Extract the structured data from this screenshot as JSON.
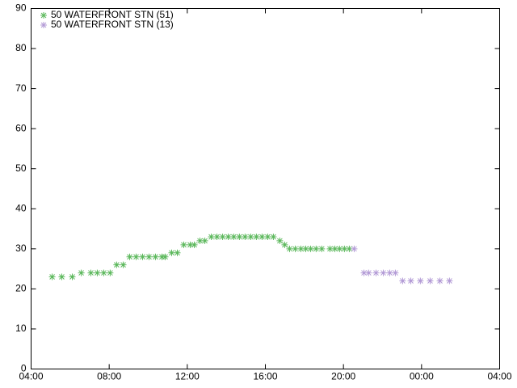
{
  "chart_data": {
    "type": "scatter",
    "series": [
      {
        "name": "50 WATERFRONT STN (51)",
        "color": "#5cb85c",
        "x": [
          5.08,
          5.57,
          6.11,
          6.57,
          7.06,
          7.39,
          7.72,
          8.05,
          8.38,
          8.72,
          9.05,
          9.38,
          9.71,
          10.04,
          10.37,
          10.7,
          10.87,
          11.2,
          11.49,
          11.82,
          12.15,
          12.36,
          12.65,
          12.9,
          13.23,
          13.52,
          13.81,
          14.1,
          14.38,
          14.67,
          14.96,
          15.25,
          15.54,
          15.83,
          16.12,
          16.41,
          16.74,
          16.99,
          17.24,
          17.53,
          17.82,
          18.07,
          18.32,
          18.6,
          18.89,
          19.31,
          19.56,
          19.8,
          20.05,
          20.3
        ],
        "values": [
          23,
          23,
          23,
          24,
          24,
          24,
          24,
          24,
          26,
          26,
          28,
          28,
          28,
          28,
          28,
          28,
          28,
          29,
          29,
          31,
          31,
          31,
          32,
          32,
          33,
          33,
          33,
          33,
          33,
          33,
          33,
          33,
          33,
          33,
          33,
          33,
          32,
          31,
          30,
          30,
          30,
          30,
          30,
          30,
          30,
          30,
          30,
          30,
          30,
          30
        ]
      },
      {
        "name": "50 WATERFRONT STN (13)",
        "color": "#b39bd6",
        "x": [
          20.55,
          21.05,
          21.29,
          21.67,
          22.04,
          22.37,
          22.66,
          23.03,
          23.45,
          23.94,
          24.44,
          24.94,
          25.43
        ],
        "values": [
          30,
          24,
          24,
          24,
          24,
          24,
          24,
          22,
          22,
          22,
          22,
          22,
          22
        ]
      }
    ],
    "xlim": [
      4,
      28
    ],
    "xticks": [
      {
        "value": 4,
        "label": "04:00"
      },
      {
        "value": 8,
        "label": "08:00"
      },
      {
        "value": 12,
        "label": "12:00"
      },
      {
        "value": 16,
        "label": "16:00"
      },
      {
        "value": 20,
        "label": "20:00"
      },
      {
        "value": 24,
        "label": "00:00"
      },
      {
        "value": 28,
        "label": "04:00"
      }
    ],
    "ylim": [
      0,
      90
    ],
    "yticks": [
      0,
      10,
      20,
      30,
      40,
      50,
      60,
      70,
      80,
      90
    ],
    "legend": "top-left"
  }
}
